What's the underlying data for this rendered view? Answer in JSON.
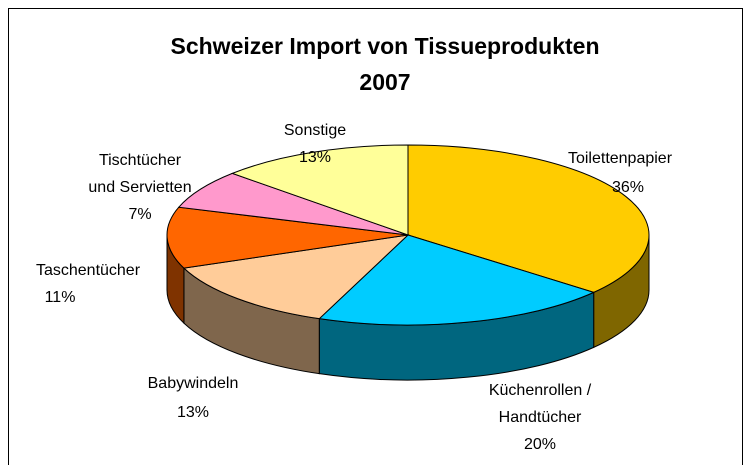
{
  "chart_data": {
    "type": "pie",
    "title": "Schweizer Import von Tissueprodukten\n2007",
    "categories": [
      "Toilettenpapier",
      "Küchenrollen /\nHandtücher",
      "Babywindeln",
      "Taschentücher",
      "Tischtücher\nund Servietten",
      "Sonstige"
    ],
    "values": [
      36,
      20,
      13,
      11,
      7,
      13
    ],
    "value_labels": [
      "36%",
      "20%",
      "13%",
      "11%",
      "7%",
      "13%"
    ],
    "colors": [
      "#FFCC00",
      "#00CCFF",
      "#FFCC99",
      "#FF6600",
      "#FF99CC",
      "#FFFF99"
    ]
  }
}
